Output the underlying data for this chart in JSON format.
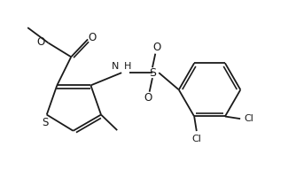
{
  "bg_color": "#ffffff",
  "bond_color": "#1a1a1a",
  "atom_color": "#1a1a1a",
  "line_width": 1.3,
  "figsize": [
    3.34,
    2.18
  ],
  "dpi": 100,
  "xlim": [
    0,
    10
  ],
  "ylim": [
    0,
    6.54
  ]
}
